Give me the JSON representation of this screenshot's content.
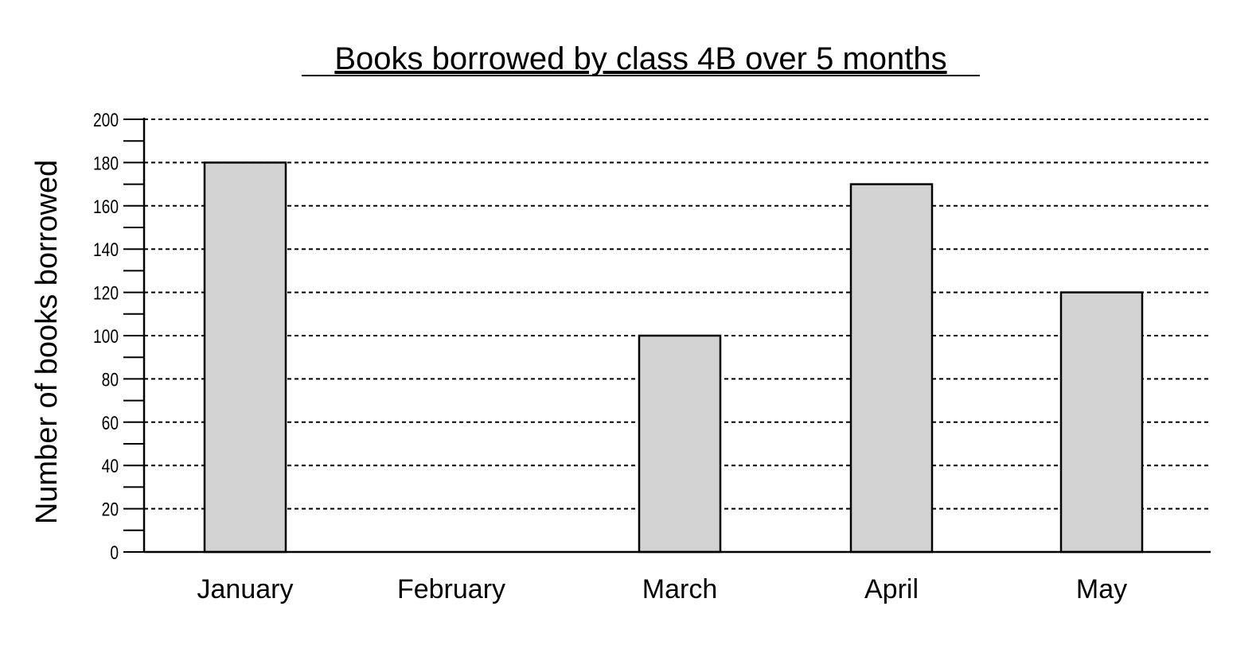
{
  "chart_data": {
    "type": "bar",
    "title": "Books borrowed by class 4B over 5 months",
    "xlabel": "",
    "ylabel": "Number of books borrowed",
    "categories": [
      "January",
      "February",
      "March",
      "April",
      "May"
    ],
    "values": [
      180,
      null,
      100,
      170,
      120
    ],
    "ylim": [
      0,
      200
    ],
    "yticks": [
      0,
      20,
      40,
      60,
      80,
      100,
      120,
      140,
      160,
      180,
      200
    ],
    "grid": "horizontal dashed",
    "colors": {
      "bar_fill": "#d3d3d3",
      "bar_stroke": "#000000",
      "grid": "#000000"
    }
  }
}
